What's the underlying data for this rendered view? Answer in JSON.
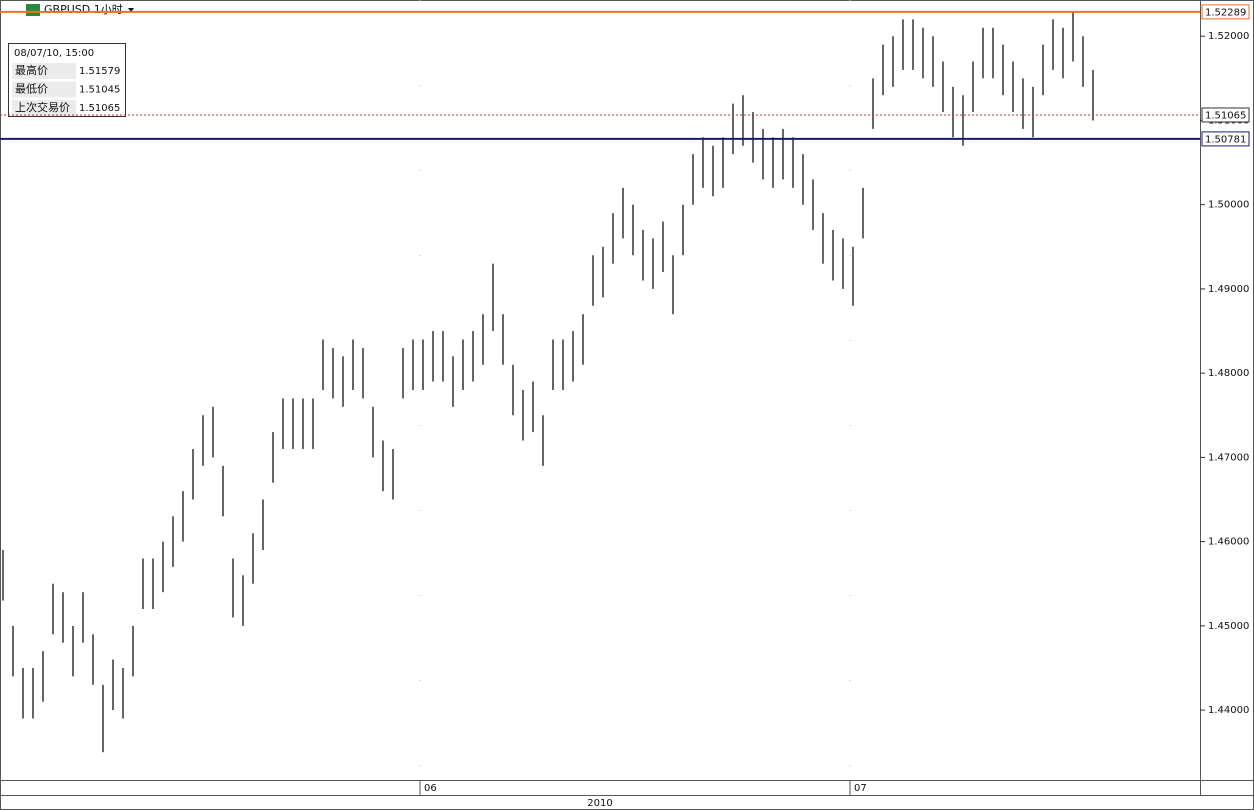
{
  "chart_data": {
    "type": "hilo",
    "title": "GBPUSD 1小时",
    "info": {
      "time": "08/07/10, 15:00",
      "rows": [
        {
          "label": "最高价",
          "value": 1.51579
        },
        {
          "label": "最低价",
          "value": 1.51045
        },
        {
          "label": "上次交易价",
          "value": 1.51065
        }
      ]
    },
    "ylim": [
      1.4317,
      1.5243
    ],
    "yticks": [
      {
        "value": 1.44,
        "label": "1.44000"
      },
      {
        "value": 1.45,
        "label": "1.45000"
      },
      {
        "value": 1.46,
        "label": "1.46000"
      },
      {
        "value": 1.47,
        "label": "1.47000"
      },
      {
        "value": 1.48,
        "label": "1.48000"
      },
      {
        "value": 1.49,
        "label": "1.49000"
      },
      {
        "value": 1.5,
        "label": "1.50000"
      },
      {
        "value": 1.51,
        "label": "1.51000"
      },
      {
        "value": 1.52,
        "label": "1.52000"
      }
    ],
    "xlim": [
      -0.3,
      119.7
    ],
    "xticks": [
      {
        "value": 41.7,
        "label": "06"
      },
      {
        "value": 84.7,
        "label": "07"
      }
    ],
    "x_label2": "2010",
    "color": "#000000",
    "high": [
      1.459,
      1.45,
      1.445,
      1.445,
      1.447,
      1.455,
      1.454,
      1.45,
      1.454,
      1.449,
      1.443,
      1.446,
      1.445,
      1.45,
      1.458,
      1.458,
      1.46,
      1.463,
      1.466,
      1.471,
      1.475,
      1.476,
      1.469,
      1.458,
      1.456,
      1.461,
      1.465,
      1.473,
      1.477,
      1.477,
      1.477,
      1.477,
      1.484,
      1.483,
      1.482,
      1.484,
      1.483,
      1.476,
      1.472,
      1.471,
      1.483,
      1.484,
      1.484,
      1.485,
      1.485,
      1.482,
      1.484,
      1.485,
      1.487,
      1.493,
      1.487,
      1.481,
      1.478,
      1.479,
      1.475,
      1.484,
      1.484,
      1.485,
      1.487,
      1.494,
      1.495,
      1.499,
      1.502,
      1.5,
      1.497,
      1.496,
      1.498,
      1.494,
      1.5,
      1.506,
      1.508,
      1.507,
      1.508,
      1.512,
      1.513,
      1.511,
      1.509,
      1.508,
      1.509,
      1.508,
      1.506,
      1.503,
      1.499,
      1.497,
      1.496,
      1.495,
      1.502,
      1.515,
      1.519,
      1.52,
      1.522,
      1.522,
      1.521,
      1.52,
      1.517,
      1.514,
      1.513,
      1.517,
      1.521,
      1.521,
      1.519,
      1.517,
      1.515,
      1.514,
      1.519,
      1.522,
      1.521,
      1.523,
      1.52,
      1.516
    ],
    "low": [
      1.453,
      1.444,
      1.439,
      1.439,
      1.441,
      1.449,
      1.448,
      1.444,
      1.448,
      1.443,
      1.435,
      1.44,
      1.439,
      1.444,
      1.452,
      1.452,
      1.454,
      1.457,
      1.46,
      1.465,
      1.469,
      1.47,
      1.463,
      1.451,
      1.45,
      1.455,
      1.459,
      1.467,
      1.471,
      1.471,
      1.471,
      1.471,
      1.478,
      1.477,
      1.476,
      1.478,
      1.477,
      1.47,
      1.466,
      1.465,
      1.477,
      1.478,
      1.478,
      1.479,
      1.479,
      1.476,
      1.478,
      1.479,
      1.481,
      1.485,
      1.481,
      1.475,
      1.472,
      1.473,
      1.469,
      1.478,
      1.478,
      1.479,
      1.481,
      1.488,
      1.489,
      1.493,
      1.496,
      1.494,
      1.491,
      1.49,
      1.492,
      1.487,
      1.494,
      1.5,
      1.502,
      1.501,
      1.502,
      1.506,
      1.507,
      1.505,
      1.503,
      1.502,
      1.503,
      1.502,
      1.5,
      1.497,
      1.493,
      1.491,
      1.49,
      1.488,
      1.496,
      1.509,
      1.513,
      1.514,
      1.516,
      1.516,
      1.515,
      1.514,
      1.511,
      1.508,
      1.507,
      1.511,
      1.515,
      1.515,
      1.513,
      1.511,
      1.509,
      1.508,
      1.513,
      1.516,
      1.515,
      1.517,
      1.514,
      1.51
    ],
    "levels": [
      {
        "value": 1.52289,
        "color": "#f07020",
        "style": "solid"
      },
      {
        "value": 1.50781,
        "color": "#1a1a6e",
        "style": "solid"
      },
      {
        "value": 1.51065,
        "color": "#c0302a",
        "style": "dotted"
      }
    ]
  }
}
